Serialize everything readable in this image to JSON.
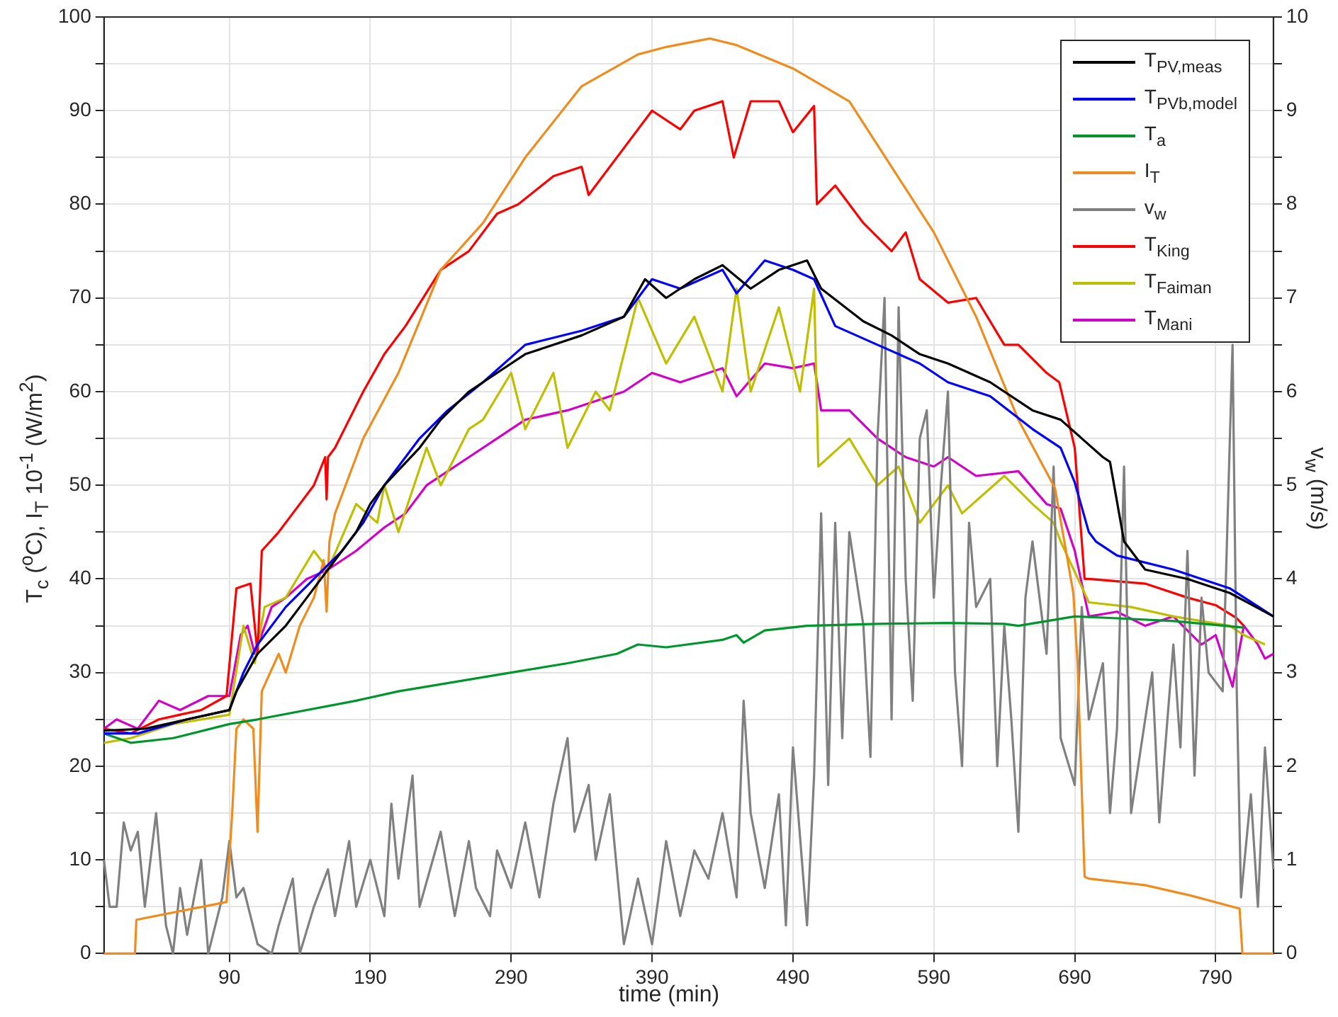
{
  "chart_data": {
    "type": "line",
    "xlabel": "time (min)",
    "ylabel": "T$_{c}$ ($^{o}$C),  I$_{T}$ 10$^{-1}$ (W/m$^{2}$)",
    "y2label": "v$_{w}$ (m/s)",
    "xlim": [
      1,
      831
    ],
    "xticks": [
      90,
      190,
      290,
      390,
      490,
      590,
      690,
      790
    ],
    "ylim": [
      0,
      100
    ],
    "yticks": [
      0,
      {
        "value": 5,
        "label": null
      },
      10,
      {
        "value": 15,
        "label": null
      },
      20,
      {
        "value": 25,
        "label": null
      },
      30,
      {
        "value": 35,
        "label": null
      },
      40,
      {
        "value": 45,
        "label": null
      },
      50,
      {
        "value": 55,
        "label": null
      },
      60,
      {
        "value": 65,
        "label": null
      },
      70,
      {
        "value": 75,
        "label": null
      },
      80,
      {
        "value": 85,
        "label": null
      },
      90,
      {
        "value": 95,
        "label": null
      },
      100
    ],
    "y2lim": [
      0,
      10
    ],
    "y2ticks": [
      0,
      {
        "value": 0.5,
        "label": null
      },
      1,
      {
        "value": 1.5,
        "label": null
      },
      2,
      {
        "value": 2.5,
        "label": null
      },
      3,
      {
        "value": 3.5,
        "label": null
      },
      4,
      {
        "value": 4.5,
        "label": null
      },
      5,
      {
        "value": 5.5,
        "label": null
      },
      6,
      {
        "value": 6.5,
        "label": null
      },
      7,
      {
        "value": 7.5,
        "label": null
      },
      8,
      {
        "value": 8.5,
        "label": null
      },
      9,
      {
        "value": 9.5,
        "label": null
      },
      10
    ],
    "grid": true,
    "legend": "top right",
    "series": [
      {
        "name": "T$_{PV,meas}$",
        "color": "#000000",
        "x": [
          1,
          30,
          60,
          90,
          95,
          110,
          130,
          145,
          160,
          180,
          190,
          200,
          225,
          240,
          260,
          300,
          340,
          370,
          385,
          400,
          420,
          440,
          460,
          480,
          500,
          510,
          540,
          560,
          580,
          600,
          630,
          660,
          680,
          695,
          710,
          715,
          725,
          740,
          770,
          800,
          831
        ],
        "values": [
          23.8,
          24,
          25,
          26,
          28,
          32,
          35,
          38,
          41,
          45,
          48,
          50,
          54,
          57,
          60,
          64,
          66,
          68,
          72,
          70,
          72,
          73.5,
          71,
          73,
          74,
          71,
          67.5,
          66,
          64,
          63,
          61,
          58,
          57,
          55,
          53,
          52.5,
          44,
          41,
          40,
          38.5,
          36
        ]
      },
      {
        "name": "T$_{PVb,model}$",
        "color": "#0000ff",
        "x": [
          1,
          25,
          60,
          90,
          100,
          110,
          130,
          150,
          170,
          185,
          200,
          225,
          245,
          270,
          300,
          340,
          370,
          390,
          410,
          440,
          450,
          470,
          490,
          505,
          520,
          550,
          580,
          600,
          630,
          660,
          680,
          690,
          700,
          705,
          720,
          760,
          800,
          831
        ],
        "values": [
          23.5,
          23.5,
          25,
          26,
          30,
          33,
          37,
          40,
          43,
          46,
          50,
          55,
          58,
          61,
          65,
          66.5,
          68,
          72,
          71,
          73,
          70.5,
          74,
          73,
          72,
          67,
          65,
          63,
          61,
          59.5,
          56,
          54,
          50.3,
          45,
          44,
          42.5,
          41,
          39,
          36
        ]
      },
      {
        "name": "T$_{a}$",
        "color": "#00962d",
        "x": [
          1,
          20,
          50,
          90,
          110,
          180,
          210,
          250,
          290,
          330,
          365,
          380,
          400,
          440,
          450,
          455,
          470,
          500,
          550,
          600,
          640,
          650,
          690,
          720,
          760,
          810
        ],
        "values": [
          23.5,
          22.5,
          23,
          24.5,
          25,
          27,
          28,
          29,
          30,
          31,
          32,
          33,
          32.7,
          33.5,
          34,
          33.2,
          34.5,
          35,
          35.2,
          35.3,
          35.2,
          35,
          36,
          35.8,
          35.5,
          34.8
        ]
      },
      {
        "name": "I$_{T}$",
        "color": "#f08c1e",
        "x": [
          1,
          23,
          24,
          88,
          92,
          95,
          100,
          107,
          110,
          113,
          125,
          130,
          140,
          150,
          157,
          159,
          161,
          165,
          185,
          210,
          240,
          270,
          300,
          340,
          380,
          400,
          431,
          450,
          490,
          530,
          560,
          590,
          620,
          650,
          676,
          689,
          692,
          697,
          700,
          740,
          772,
          807,
          809,
          831
        ],
        "values": [
          0,
          0,
          3.6,
          5.5,
          15,
          24,
          25,
          24,
          13,
          28,
          32,
          30,
          35,
          38,
          42,
          36.5,
          44,
          47,
          55,
          62,
          73,
          78,
          85,
          92.6,
          96,
          96.8,
          97.7,
          97,
          94.5,
          91,
          84,
          77,
          68,
          57,
          49.7,
          38.5,
          31,
          8.2,
          8,
          7.3,
          6.2,
          4.8,
          0,
          0
        ]
      },
      {
        "name": "v$_{w}$",
        "color": "#808080",
        "axis": "y2",
        "x": [
          1,
          5,
          10,
          15,
          20,
          25,
          30,
          38,
          45,
          50,
          55,
          60,
          70,
          75,
          85,
          90,
          95,
          100,
          110,
          120,
          125,
          135,
          140,
          150,
          160,
          165,
          175,
          180,
          190,
          200,
          205,
          210,
          220,
          225,
          240,
          250,
          260,
          265,
          275,
          280,
          290,
          300,
          310,
          320,
          330,
          335,
          345,
          350,
          360,
          370,
          380,
          390,
          400,
          410,
          420,
          430,
          440,
          450,
          455,
          460,
          470,
          480,
          485,
          490,
          500,
          505,
          510,
          515,
          520,
          525,
          530,
          540,
          545,
          550,
          555,
          560,
          565,
          570,
          575,
          580,
          585,
          590,
          595,
          600,
          605,
          610,
          615,
          620,
          630,
          635,
          640,
          645,
          650,
          655,
          660,
          670,
          675,
          680,
          690,
          695,
          700,
          710,
          715,
          720,
          725,
          730,
          740,
          745,
          750,
          760,
          765,
          770,
          775,
          780,
          785,
          795,
          802,
          805,
          808,
          815,
          820,
          825,
          831
        ],
        "values": [
          1,
          0.5,
          0.5,
          1.4,
          1.1,
          1.3,
          0.5,
          1.5,
          0.3,
          0,
          0.7,
          0.2,
          1,
          0,
          0.6,
          1.2,
          0.6,
          0.7,
          0.1,
          0,
          0.3,
          0.8,
          0,
          0.5,
          0.9,
          0.4,
          1.2,
          0.5,
          1,
          0.4,
          1.6,
          0.8,
          1.9,
          0.5,
          1.3,
          0.4,
          1.2,
          0.7,
          0.4,
          1.1,
          0.7,
          1.4,
          0.6,
          1.6,
          2.3,
          1.3,
          1.8,
          1,
          1.7,
          0.1,
          0.8,
          0.1,
          1.2,
          0.4,
          1.1,
          0.8,
          1.5,
          0.6,
          2.7,
          1.5,
          0.7,
          1.7,
          0.3,
          2.2,
          0.3,
          1.9,
          4.7,
          1.8,
          4.6,
          2.3,
          4.5,
          3.5,
          2.1,
          5.5,
          7,
          2.5,
          6.9,
          4,
          2.7,
          5.5,
          5.8,
          3.8,
          5,
          6,
          3,
          2,
          4.6,
          3.7,
          4,
          2,
          3.5,
          2.5,
          1.3,
          3.8,
          4.4,
          3.2,
          5.2,
          2.3,
          1.8,
          3.7,
          2.5,
          3.1,
          1.5,
          2.4,
          5.2,
          1.5,
          2.5,
          3,
          1.4,
          3.3,
          2.2,
          4.3,
          1.9,
          3.8,
          3,
          2.8,
          6.5,
          2.8,
          0.6,
          1.7,
          0.5,
          2.2,
          0.9
        ]
      },
      {
        "name": "T$_{King}$",
        "color": "#ff0000",
        "x": [
          1,
          20,
          40,
          70,
          88,
          95,
          105,
          110,
          113,
          125,
          135,
          150,
          158,
          159,
          160,
          165,
          185,
          200,
          215,
          240,
          260,
          280,
          295,
          320,
          340,
          345,
          370,
          390,
          410,
          420,
          440,
          448,
          460,
          480,
          490,
          505,
          507,
          520,
          540,
          560,
          570,
          580,
          600,
          620,
          640,
          650,
          670,
          679,
          690,
          697,
          700,
          740,
          770,
          790,
          805,
          810
        ],
        "values": [
          24,
          23.5,
          25,
          26,
          27.5,
          39,
          39.5,
          32,
          43,
          45,
          47,
          50,
          53,
          48.5,
          53,
          54,
          60,
          64,
          67,
          73,
          75,
          79,
          80,
          83,
          84,
          81,
          86,
          90,
          88,
          90,
          91,
          85,
          91,
          91,
          87.7,
          90.5,
          80,
          82,
          78,
          75,
          77,
          72,
          69.5,
          70,
          65,
          65,
          62,
          61,
          54,
          40,
          40,
          39.5,
          38,
          37.2,
          35.8,
          35
        ]
      },
      {
        "name": "T$_{Faiman}$",
        "color": "#bfbf00",
        "x": [
          1,
          20,
          50,
          90,
          100,
          108,
          115,
          130,
          150,
          160,
          180,
          195,
          200,
          210,
          230,
          240,
          260,
          270,
          290,
          300,
          320,
          330,
          350,
          360,
          380,
          400,
          420,
          440,
          450,
          460,
          480,
          495,
          505,
          508,
          530,
          550,
          565,
          580,
          600,
          610,
          640,
          660,
          675,
          680,
          700,
          730,
          760,
          800,
          810,
          825
        ],
        "values": [
          22.5,
          23,
          24.5,
          25.5,
          35,
          31,
          37,
          38,
          43,
          41,
          48,
          46,
          50,
          45,
          54,
          50,
          56,
          57,
          62,
          56,
          62,
          54,
          60,
          58,
          70,
          63,
          68,
          60,
          71,
          60,
          69,
          60,
          71,
          52,
          55,
          50,
          52,
          46,
          50,
          47,
          51,
          48,
          46,
          44,
          37.5,
          37,
          36,
          35,
          34,
          33
        ]
      },
      {
        "name": "T$_{Mani}$",
        "color": "#d400c8",
        "x": [
          1,
          10,
          25,
          40,
          55,
          75,
          90,
          98,
          103,
          108,
          120,
          130,
          145,
          160,
          180,
          200,
          215,
          230,
          260,
          280,
          300,
          330,
          370,
          390,
          410,
          440,
          450,
          470,
          490,
          505,
          510,
          530,
          550,
          570,
          590,
          600,
          620,
          650,
          670,
          680,
          690,
          700,
          720,
          740,
          760,
          780,
          790,
          802,
          810,
          820,
          825,
          831
        ],
        "values": [
          24,
          25,
          24,
          27,
          26,
          27.5,
          27.5,
          34,
          35,
          32,
          37,
          38,
          40,
          41,
          43,
          45.5,
          47,
          50,
          53,
          55,
          57,
          58,
          60,
          62,
          61,
          62.5,
          59.5,
          63,
          62.5,
          63,
          58,
          58,
          55,
          53,
          52,
          53,
          51,
          51.5,
          48,
          47.5,
          43,
          36,
          36.5,
          35,
          36,
          33,
          34,
          28.5,
          35,
          33,
          31.5,
          32
        ]
      }
    ]
  }
}
